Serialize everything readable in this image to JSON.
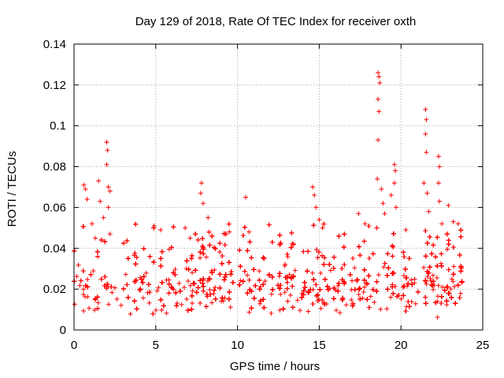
{
  "chart_data": {
    "type": "scatter",
    "title": "Day 129 of 2018, Rate Of TEC Index for receiver oxth",
    "xlabel": "GPS time / hours",
    "ylabel": "ROTI / TECUs",
    "xlim": [
      0,
      25
    ],
    "ylim": [
      0,
      0.14
    ],
    "xticks": [
      0,
      5,
      10,
      15,
      20,
      25
    ],
    "xtick_labels": [
      "0",
      "5",
      "10",
      "15",
      "20",
      "25"
    ],
    "yticks": [
      0,
      0.02,
      0.04,
      0.06,
      0.08,
      0.1,
      0.12,
      0.14
    ],
    "ytick_labels": [
      "0",
      "0.02",
      "0.04",
      "0.06",
      "0.08",
      "0.1",
      "0.12",
      "0.14"
    ],
    "grid": true,
    "marker": "+",
    "color": "#ff0000",
    "series": [
      {
        "name": "ROTI",
        "x_range": [
          0,
          23.8
        ],
        "bulk_range": [
          0.005,
          0.035
        ],
        "points": [
          {
            "x": 0.6,
            "y": 0.071
          },
          {
            "x": 0.7,
            "y": 0.069
          },
          {
            "x": 0.8,
            "y": 0.064
          },
          {
            "x": 1.1,
            "y": 0.052
          },
          {
            "x": 1.3,
            "y": 0.045
          },
          {
            "x": 1.5,
            "y": 0.073
          },
          {
            "x": 1.6,
            "y": 0.063
          },
          {
            "x": 1.8,
            "y": 0.055
          },
          {
            "x": 2.0,
            "y": 0.092
          },
          {
            "x": 2.05,
            "y": 0.088
          },
          {
            "x": 2.0,
            "y": 0.081
          },
          {
            "x": 2.1,
            "y": 0.07
          },
          {
            "x": 2.2,
            "y": 0.068
          },
          {
            "x": 2.1,
            "y": 0.06
          },
          {
            "x": 2.2,
            "y": 0.047
          },
          {
            "x": 4.9,
            "y": 0.051
          },
          {
            "x": 5.3,
            "y": 0.049
          },
          {
            "x": 6.8,
            "y": 0.05
          },
          {
            "x": 7.1,
            "y": 0.045
          },
          {
            "x": 7.8,
            "y": 0.072
          },
          {
            "x": 7.75,
            "y": 0.067
          },
          {
            "x": 7.9,
            "y": 0.062
          },
          {
            "x": 8.2,
            "y": 0.055
          },
          {
            "x": 9.5,
            "y": 0.048
          },
          {
            "x": 10.5,
            "y": 0.065
          },
          {
            "x": 10.7,
            "y": 0.048
          },
          {
            "x": 14.6,
            "y": 0.07
          },
          {
            "x": 14.7,
            "y": 0.066
          },
          {
            "x": 14.8,
            "y": 0.06
          },
          {
            "x": 15.0,
            "y": 0.054
          },
          {
            "x": 15.2,
            "y": 0.05
          },
          {
            "x": 17.4,
            "y": 0.057
          },
          {
            "x": 17.8,
            "y": 0.052
          },
          {
            "x": 18.6,
            "y": 0.126
          },
          {
            "x": 18.65,
            "y": 0.124
          },
          {
            "x": 18.7,
            "y": 0.121
          },
          {
            "x": 18.6,
            "y": 0.113
          },
          {
            "x": 18.65,
            "y": 0.107
          },
          {
            "x": 18.6,
            "y": 0.093
          },
          {
            "x": 18.55,
            "y": 0.074
          },
          {
            "x": 18.8,
            "y": 0.069
          },
          {
            "x": 18.9,
            "y": 0.062
          },
          {
            "x": 19.0,
            "y": 0.057
          },
          {
            "x": 19.4,
            "y": 0.066
          },
          {
            "x": 19.6,
            "y": 0.081
          },
          {
            "x": 19.65,
            "y": 0.078
          },
          {
            "x": 19.6,
            "y": 0.072
          },
          {
            "x": 19.7,
            "y": 0.06
          },
          {
            "x": 20.3,
            "y": 0.049
          },
          {
            "x": 21.5,
            "y": 0.108
          },
          {
            "x": 21.55,
            "y": 0.103
          },
          {
            "x": 21.5,
            "y": 0.096
          },
          {
            "x": 21.55,
            "y": 0.087
          },
          {
            "x": 21.4,
            "y": 0.072
          },
          {
            "x": 21.6,
            "y": 0.067
          },
          {
            "x": 21.7,
            "y": 0.058
          },
          {
            "x": 22.3,
            "y": 0.085
          },
          {
            "x": 22.35,
            "y": 0.08
          },
          {
            "x": 22.3,
            "y": 0.072
          },
          {
            "x": 22.35,
            "y": 0.063
          },
          {
            "x": 22.5,
            "y": 0.052
          },
          {
            "x": 22.9,
            "y": 0.061
          },
          {
            "x": 23.2,
            "y": 0.053
          },
          {
            "x": 23.5,
            "y": 0.052
          }
        ]
      }
    ]
  }
}
